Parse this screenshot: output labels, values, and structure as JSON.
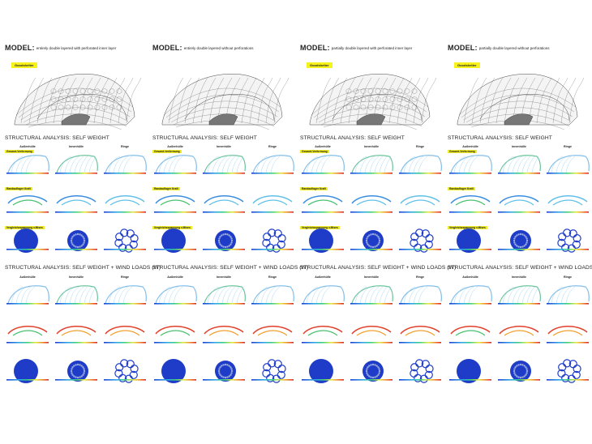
{
  "models": [
    {
      "label": "MODEL:",
      "desc": "entirely double layered with perforated inner layer",
      "highlight": "Goodshelter",
      "variant": "perforated"
    },
    {
      "label": "MODEL:",
      "desc": "entirely double layered without perforations",
      "highlight": "",
      "variant": "plain"
    },
    {
      "label": "MODEL:",
      "desc": "partially double layered with perforated inner layer",
      "highlight": "Goodshelter",
      "variant": "perforated"
    },
    {
      "label": "MODEL:",
      "desc": "partially double layered without perforations",
      "highlight": "Goodshelter",
      "variant": "plain"
    }
  ],
  "sections": {
    "self_weight": "STRUCTURAL ANALYSIS: SELF WEIGHT",
    "wind": "STRUCTURAL ANALYSIS: SELF WEIGHT + WIND LOADS (W)"
  },
  "column_headers": [
    "Außenhülle",
    "Innenhülle",
    "Ringe"
  ],
  "row_labels": [
    "Gesamt-Verformung",
    "Randauflager Kraft",
    "Vergleichsspannung v.Mises"
  ],
  "colors": {
    "highlight": "#f6f21a",
    "mesh_low": "#1a3fd0",
    "mesh_mid": "#2aa7e8",
    "mesh_high": "#e02020"
  }
}
